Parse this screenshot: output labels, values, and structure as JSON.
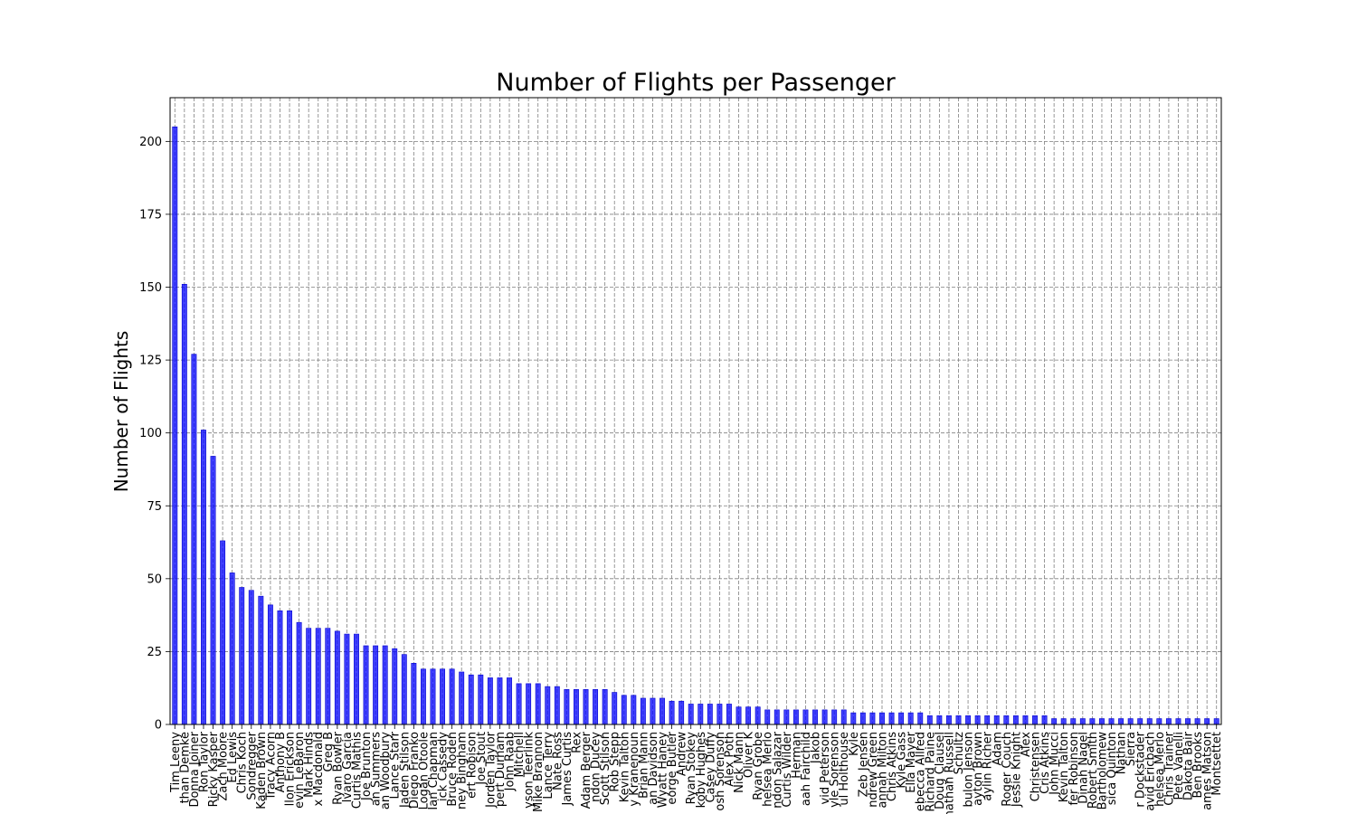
{
  "chart_data": {
    "type": "bar",
    "title": "Number of Flights per Passenger",
    "xlabel": "",
    "ylabel": "Number of Flights",
    "ylim": [
      0,
      215
    ],
    "yticks": [
      0,
      25,
      50,
      75,
      100,
      125,
      150,
      175,
      200
    ],
    "grid": true,
    "bar_color": "#0000ff",
    "categories": [
      "Tim Leeny",
      "than Demke",
      "Donna Joiner",
      "Ron Taylor",
      "Ricky Kasper",
      "Zach Moore",
      "Ed Lewis",
      "Chris Koch",
      "Sondregger",
      "Kaden Brown",
      "Tracy Acorn",
      "Anthony B",
      "llon Erickson",
      "evin LeBaron",
      "Mark Hinds",
      "x Macdonald",
      "Greg B",
      "Ryan Bowler",
      "lvaro Garcia",
      "Curtis Mathis",
      "Joe Brunton",
      "an Summers",
      "an Woodbury",
      "Lance Starr",
      "Jaden Stilson",
      "Diego Franko",
      "Logan Otoole",
      "Ian Chapman",
      "ick Cassedy",
      "Bruce Roden",
      "ney Bingham",
      "ert Robison",
      "Joe Stout",
      "Jorden Taylor",
      "pert Durham",
      "John Raab",
      "Mitchell",
      "yson Teerlink",
      "Mike Brannon",
      "Lance Terry",
      "Nate Ross",
      "James Curtis",
      "Rex",
      "Adam Berger",
      "ndon Ducey",
      "Scott Stilson",
      "Rob Stepp",
      "Kevin Talton",
      "y Kranenoun",
      "Brian Mann",
      "an Davidson",
      "Wyatt Haney",
      "eorge Butler",
      "Andrew",
      "Ryan Stokey",
      "koby Hughes",
      "Casey Duffy",
      "osh Sorenson",
      "Alex Poth",
      "Nick Mann",
      "Oliver K",
      "Ryan Grobe",
      "helsea Merlo",
      "ndon Salazar",
      "Curtis Wilder",
      "Herman",
      "aah Fairchild",
      "Jakob",
      "vid Peterson",
      "yle Sorenson",
      "ul Holthouse",
      "Kyle",
      "Zeb Jensen",
      "ndrew Green",
      "annah Milton",
      "Chris Atkins",
      "Kyle Gass",
      "Ella Mayer",
      "ebecca Allred",
      "Richard Paine",
      "Doug Clausel",
      "nathan Russell",
      "Schultz",
      "bulon Jenson",
      "ayton Brown",
      "aylin Richer",
      "Adam",
      "Roger Couch",
      "Jessie Knight",
      "Alex",
      "Christensen",
      "Cris Atkins",
      "John Mucci",
      "Kevin Talton",
      "fer Robinson",
      "Dinah Nagel",
      "Robert Smith",
      "Bartholomew",
      "sica Quinton",
      "Nathan",
      "Sierra",
      "r Dockstader",
      "avid Ericbach",
      "helsea Merlo",
      "Chris Trainer",
      "Pete Vanelli",
      "Dakota Bair",
      "Ben Brooks",
      "ames Matson",
      "Montsettet"
    ],
    "values": [
      205,
      151,
      127,
      101,
      92,
      63,
      52,
      47,
      46,
      44,
      41,
      39,
      39,
      35,
      33,
      33,
      33,
      32,
      31,
      31,
      27,
      27,
      27,
      26,
      24,
      21,
      19,
      19,
      19,
      19,
      18,
      17,
      17,
      16,
      16,
      16,
      14,
      14,
      14,
      13,
      13,
      12,
      12,
      12,
      12,
      12,
      11,
      10,
      10,
      9,
      9,
      9,
      8,
      8,
      7,
      7,
      7,
      7,
      7,
      6,
      6,
      6,
      5,
      5,
      5,
      5,
      5,
      5,
      5,
      5,
      5,
      4,
      4,
      4,
      4,
      4,
      4,
      4,
      4,
      3,
      3,
      3,
      3,
      3,
      3,
      3,
      3,
      3,
      3,
      3,
      3,
      3,
      2,
      2,
      2,
      2,
      2,
      2,
      2,
      2,
      2,
      2,
      2,
      2,
      2,
      2,
      2,
      2,
      2,
      2
    ]
  }
}
